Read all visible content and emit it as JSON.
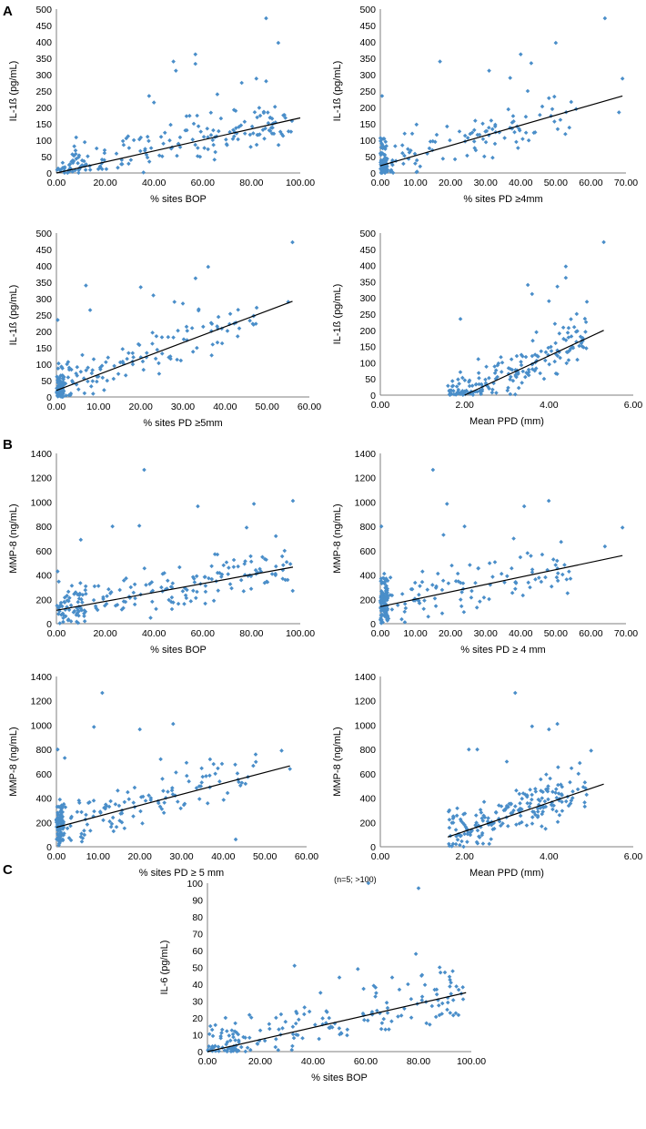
{
  "panel_labels": {
    "A": "A",
    "B": "B",
    "C": "C"
  },
  "chart_data": [
    {
      "id": "A1",
      "type": "scatter",
      "xlabel": "% sites BOP",
      "ylabel": "IL-1ß (pg/mL)",
      "xlim": [
        0,
        100
      ],
      "ylim": [
        0,
        500
      ],
      "xticks": [
        "0.00",
        "20.00",
        "40.00",
        "60.00",
        "80.00",
        "100.00"
      ],
      "yticks": [
        "0",
        "50",
        "100",
        "150",
        "200",
        "250",
        "300",
        "350",
        "400",
        "450",
        "500"
      ],
      "trend": [
        [
          0,
          0
        ],
        [
          100,
          168
        ]
      ],
      "seed": 11,
      "n": 190,
      "points": [
        [
          86,
          472
        ],
        [
          91,
          397
        ],
        [
          57,
          362
        ],
        [
          48,
          340
        ],
        [
          49,
          312
        ],
        [
          57,
          333
        ],
        [
          76,
          275
        ],
        [
          82,
          288
        ],
        [
          86,
          280
        ],
        [
          38,
          235
        ],
        [
          40,
          215
        ],
        [
          66,
          240
        ]
      ]
    },
    {
      "id": "A2",
      "type": "scatter",
      "xlabel": "% sites PD ≥4mm",
      "ylabel": "IL-1ß (pg/mL)",
      "xlim": [
        0,
        70
      ],
      "ylim": [
        0,
        500
      ],
      "xticks": [
        "0.00",
        "10.00",
        "20.00",
        "30.00",
        "40.00",
        "50.00",
        "60.00",
        "70.00"
      ],
      "yticks": [
        "0",
        "50",
        "100",
        "150",
        "200",
        "250",
        "300",
        "350",
        "400",
        "450",
        "500"
      ],
      "trend": [
        [
          0,
          22
        ],
        [
          69,
          235
        ]
      ],
      "seed": 23,
      "n": 185,
      "points": [
        [
          64,
          472
        ],
        [
          50,
          397
        ],
        [
          40,
          362
        ],
        [
          17,
          340
        ],
        [
          43,
          335
        ],
        [
          31,
          312
        ],
        [
          69,
          288
        ],
        [
          37,
          290
        ],
        [
          0.5,
          235
        ],
        [
          42,
          250
        ],
        [
          68,
          185
        ],
        [
          49,
          195
        ]
      ]
    },
    {
      "id": "A3",
      "type": "scatter",
      "xlabel": "% sites PD ≥5mm",
      "ylabel": "IL-1ß (pg/mL)",
      "xlim": [
        0,
        60
      ],
      "ylim": [
        0,
        500
      ],
      "xticks": [
        "0.00",
        "10.00",
        "20.00",
        "30.00",
        "40.00",
        "50.00",
        "60.00"
      ],
      "yticks": [
        "0",
        "50",
        "100",
        "150",
        "200",
        "250",
        "300",
        "350",
        "400",
        "450",
        "500"
      ],
      "trend": [
        [
          0,
          20
        ],
        [
          56,
          292
        ]
      ],
      "seed": 37,
      "n": 185,
      "points": [
        [
          56,
          472
        ],
        [
          36,
          397
        ],
        [
          33,
          362
        ],
        [
          20,
          335
        ],
        [
          7,
          340
        ],
        [
          8,
          265
        ],
        [
          23,
          310
        ],
        [
          28,
          290
        ],
        [
          30,
          285
        ],
        [
          55,
          290
        ],
        [
          0.3,
          235
        ],
        [
          43,
          185
        ]
      ]
    },
    {
      "id": "A4",
      "type": "scatter",
      "xlabel": "Mean PPD (mm)",
      "ylabel": "IL-1ß (pg/mL)",
      "xlim": [
        0,
        6
      ],
      "ylim": [
        0,
        500
      ],
      "xticks": [
        "0.00",
        "2.00",
        "4.00",
        "6.00"
      ],
      "yticks": [
        "0",
        "50",
        "100",
        "150",
        "200",
        "250",
        "300",
        "350",
        "400",
        "450",
        "500"
      ],
      "trend": [
        [
          2.0,
          0
        ],
        [
          5.3,
          200
        ]
      ],
      "seed": 41,
      "n": 185,
      "points": [
        [
          5.3,
          472
        ],
        [
          4.4,
          397
        ],
        [
          4.4,
          362
        ],
        [
          3.5,
          340
        ],
        [
          4.2,
          335
        ],
        [
          3.6,
          312
        ],
        [
          4.9,
          288
        ],
        [
          1.9,
          235
        ],
        [
          4.6,
          210
        ],
        [
          4.0,
          290
        ]
      ]
    },
    {
      "id": "B1",
      "type": "scatter",
      "xlabel": "% sites BOP",
      "ylabel": "MMP-8 (ng/mL)",
      "xlim": [
        0,
        100
      ],
      "ylim": [
        0,
        1400
      ],
      "xticks": [
        "0.00",
        "20.00",
        "40.00",
        "60.00",
        "80.00",
        "100.00"
      ],
      "yticks": [
        "0",
        "200",
        "400",
        "600",
        "800",
        "1000",
        "1200",
        "1400"
      ],
      "trend": [
        [
          0,
          110
        ],
        [
          97,
          465
        ]
      ],
      "seed": 53,
      "n": 200,
      "points": [
        [
          36,
          1265
        ],
        [
          97,
          1010
        ],
        [
          81,
          985
        ],
        [
          58,
          965
        ],
        [
          23,
          800
        ],
        [
          34,
          805
        ],
        [
          10,
          690
        ],
        [
          0.5,
          430
        ],
        [
          78,
          790
        ],
        [
          90,
          720
        ]
      ]
    },
    {
      "id": "B2",
      "type": "scatter",
      "xlabel": "% sites PD ≥ 4 mm",
      "ylabel": "MMP-8 (ng/mL)",
      "xlim": [
        0,
        70
      ],
      "ylim": [
        0,
        1400
      ],
      "xticks": [
        "0.00",
        "10.00",
        "20.00",
        "30.00",
        "40.00",
        "50.00",
        "60.00",
        "70.00"
      ],
      "yticks": [
        "0",
        "200",
        "400",
        "600",
        "800",
        "1000",
        "1200",
        "1400"
      ],
      "trend": [
        [
          0,
          140
        ],
        [
          69,
          560
        ]
      ],
      "seed": 67,
      "n": 200,
      "points": [
        [
          15,
          1265
        ],
        [
          19,
          985
        ],
        [
          48,
          1010
        ],
        [
          41,
          965
        ],
        [
          0.3,
          800
        ],
        [
          69,
          790
        ],
        [
          64,
          635
        ],
        [
          38,
          700
        ],
        [
          18,
          730
        ],
        [
          24,
          800
        ]
      ]
    },
    {
      "id": "B3",
      "type": "scatter",
      "xlabel": "% sites PD ≥ 5 mm",
      "ylabel": "MMP-8 (ng/mL)",
      "xlim": [
        0,
        60
      ],
      "ylim": [
        0,
        1400
      ],
      "xticks": [
        "0.00",
        "10.00",
        "20.00",
        "30.00",
        "40.00",
        "50.00",
        "60.00"
      ],
      "yticks": [
        "0",
        "200",
        "400",
        "600",
        "800",
        "1000",
        "1200",
        "1400"
      ],
      "trend": [
        [
          0,
          160
        ],
        [
          56,
          665
        ]
      ],
      "seed": 71,
      "n": 200,
      "points": [
        [
          11,
          1265
        ],
        [
          9,
          985
        ],
        [
          28,
          1010
        ],
        [
          20,
          965
        ],
        [
          0.3,
          800
        ],
        [
          54,
          790
        ],
        [
          56,
          640
        ],
        [
          25,
          720
        ],
        [
          2,
          730
        ],
        [
          43,
          60
        ]
      ]
    },
    {
      "id": "B4",
      "type": "scatter",
      "xlabel": "Mean PPD (mm)",
      "ylabel": "MMP-8 (ng/mL)",
      "xlim": [
        0,
        6
      ],
      "ylim": [
        0,
        1400
      ],
      "xticks": [
        "0.00",
        "2.00",
        "4.00",
        "6.00"
      ],
      "yticks": [
        "0",
        "200",
        "400",
        "600",
        "800",
        "1000",
        "1200",
        "1400"
      ],
      "trend": [
        [
          1.6,
          80
        ],
        [
          5.3,
          515
        ]
      ],
      "seed": 83,
      "n": 200,
      "points": [
        [
          3.2,
          1265
        ],
        [
          3.6,
          990
        ],
        [
          4.2,
          1010
        ],
        [
          4.0,
          965
        ],
        [
          2.1,
          800
        ],
        [
          2.3,
          800
        ],
        [
          5.0,
          790
        ],
        [
          4.7,
          600
        ],
        [
          3.0,
          700
        ]
      ]
    },
    {
      "id": "C1",
      "type": "scatter",
      "xlabel": "% sites BOP",
      "ylabel": "IL-6 (pg/mL)",
      "xlim": [
        0,
        100
      ],
      "ylim": [
        0,
        100
      ],
      "xticks": [
        "0.00",
        "20.00",
        "40.00",
        "60.00",
        "80.00",
        "100.00"
      ],
      "yticks": [
        "0",
        "10",
        "20",
        "30",
        "40",
        "50",
        "60",
        "70",
        "80",
        "90",
        "100"
      ],
      "trend": [
        [
          0,
          0
        ],
        [
          98,
          35
        ]
      ],
      "seed": 97,
      "n": 190,
      "annotation": "(n=5; >100)",
      "points": [
        [
          61,
          100
        ],
        [
          80,
          97
        ],
        [
          79,
          58
        ],
        [
          33,
          51
        ],
        [
          50,
          44
        ],
        [
          57,
          49
        ],
        [
          88,
          50
        ],
        [
          90,
          47
        ],
        [
          70,
          44
        ],
        [
          76,
          40
        ]
      ]
    }
  ]
}
